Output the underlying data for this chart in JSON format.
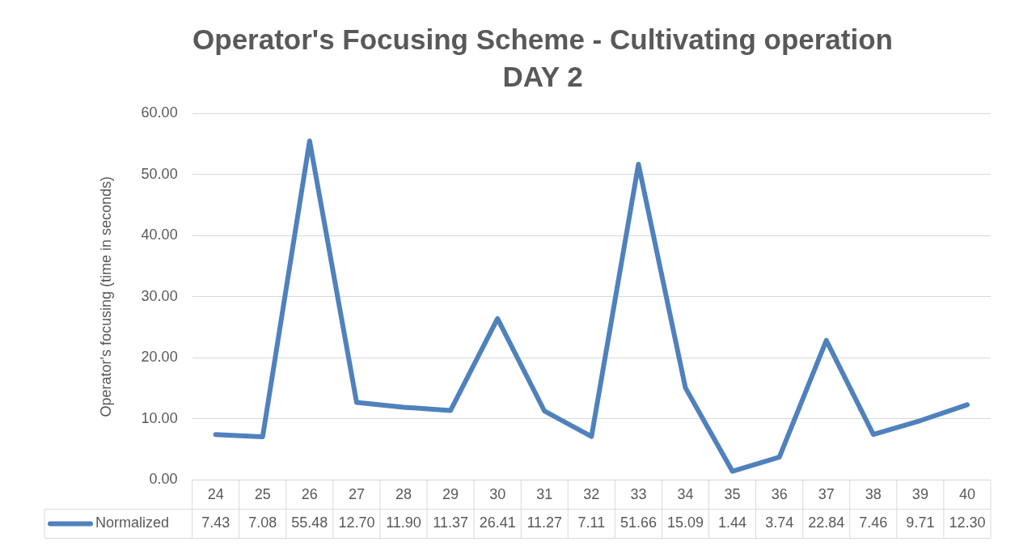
{
  "chart_data": {
    "type": "line",
    "title": "Operator's Focusing Scheme - Cultivating operation",
    "subtitle": "DAY 2",
    "ylabel": "Operator's focusing (time in seconds)",
    "categories": [
      "24",
      "25",
      "26",
      "27",
      "28",
      "29",
      "30",
      "31",
      "32",
      "33",
      "34",
      "35",
      "36",
      "37",
      "38",
      "39",
      "40"
    ],
    "series": [
      {
        "name": "Normalized",
        "color": "#4f81bd",
        "values": [
          7.43,
          7.08,
          55.48,
          12.7,
          11.9,
          11.37,
          26.41,
          11.27,
          7.11,
          51.66,
          15.09,
          1.44,
          3.74,
          22.84,
          7.46,
          9.71,
          12.3
        ],
        "value_labels": [
          "7.43",
          "7.08",
          "55.48",
          "12.70",
          "11.90",
          "11.37",
          "26.41",
          "11.27",
          "7.11",
          "51.66",
          "15.09",
          "1.44",
          "3.74",
          "22.84",
          "7.46",
          "9.71",
          "12.30"
        ]
      }
    ],
    "ylim": [
      0,
      60
    ],
    "yticks": [
      {
        "value": 0,
        "label": "0.00"
      },
      {
        "value": 10,
        "label": "10.00"
      },
      {
        "value": 20,
        "label": "20.00"
      },
      {
        "value": 30,
        "label": "30.00"
      },
      {
        "value": 40,
        "label": "40.00"
      },
      {
        "value": 50,
        "label": "50.00"
      },
      {
        "value": 60,
        "label": "60.00"
      }
    ],
    "grid": "y",
    "legend": "bottom",
    "marker": "none",
    "line_style": "solid"
  }
}
